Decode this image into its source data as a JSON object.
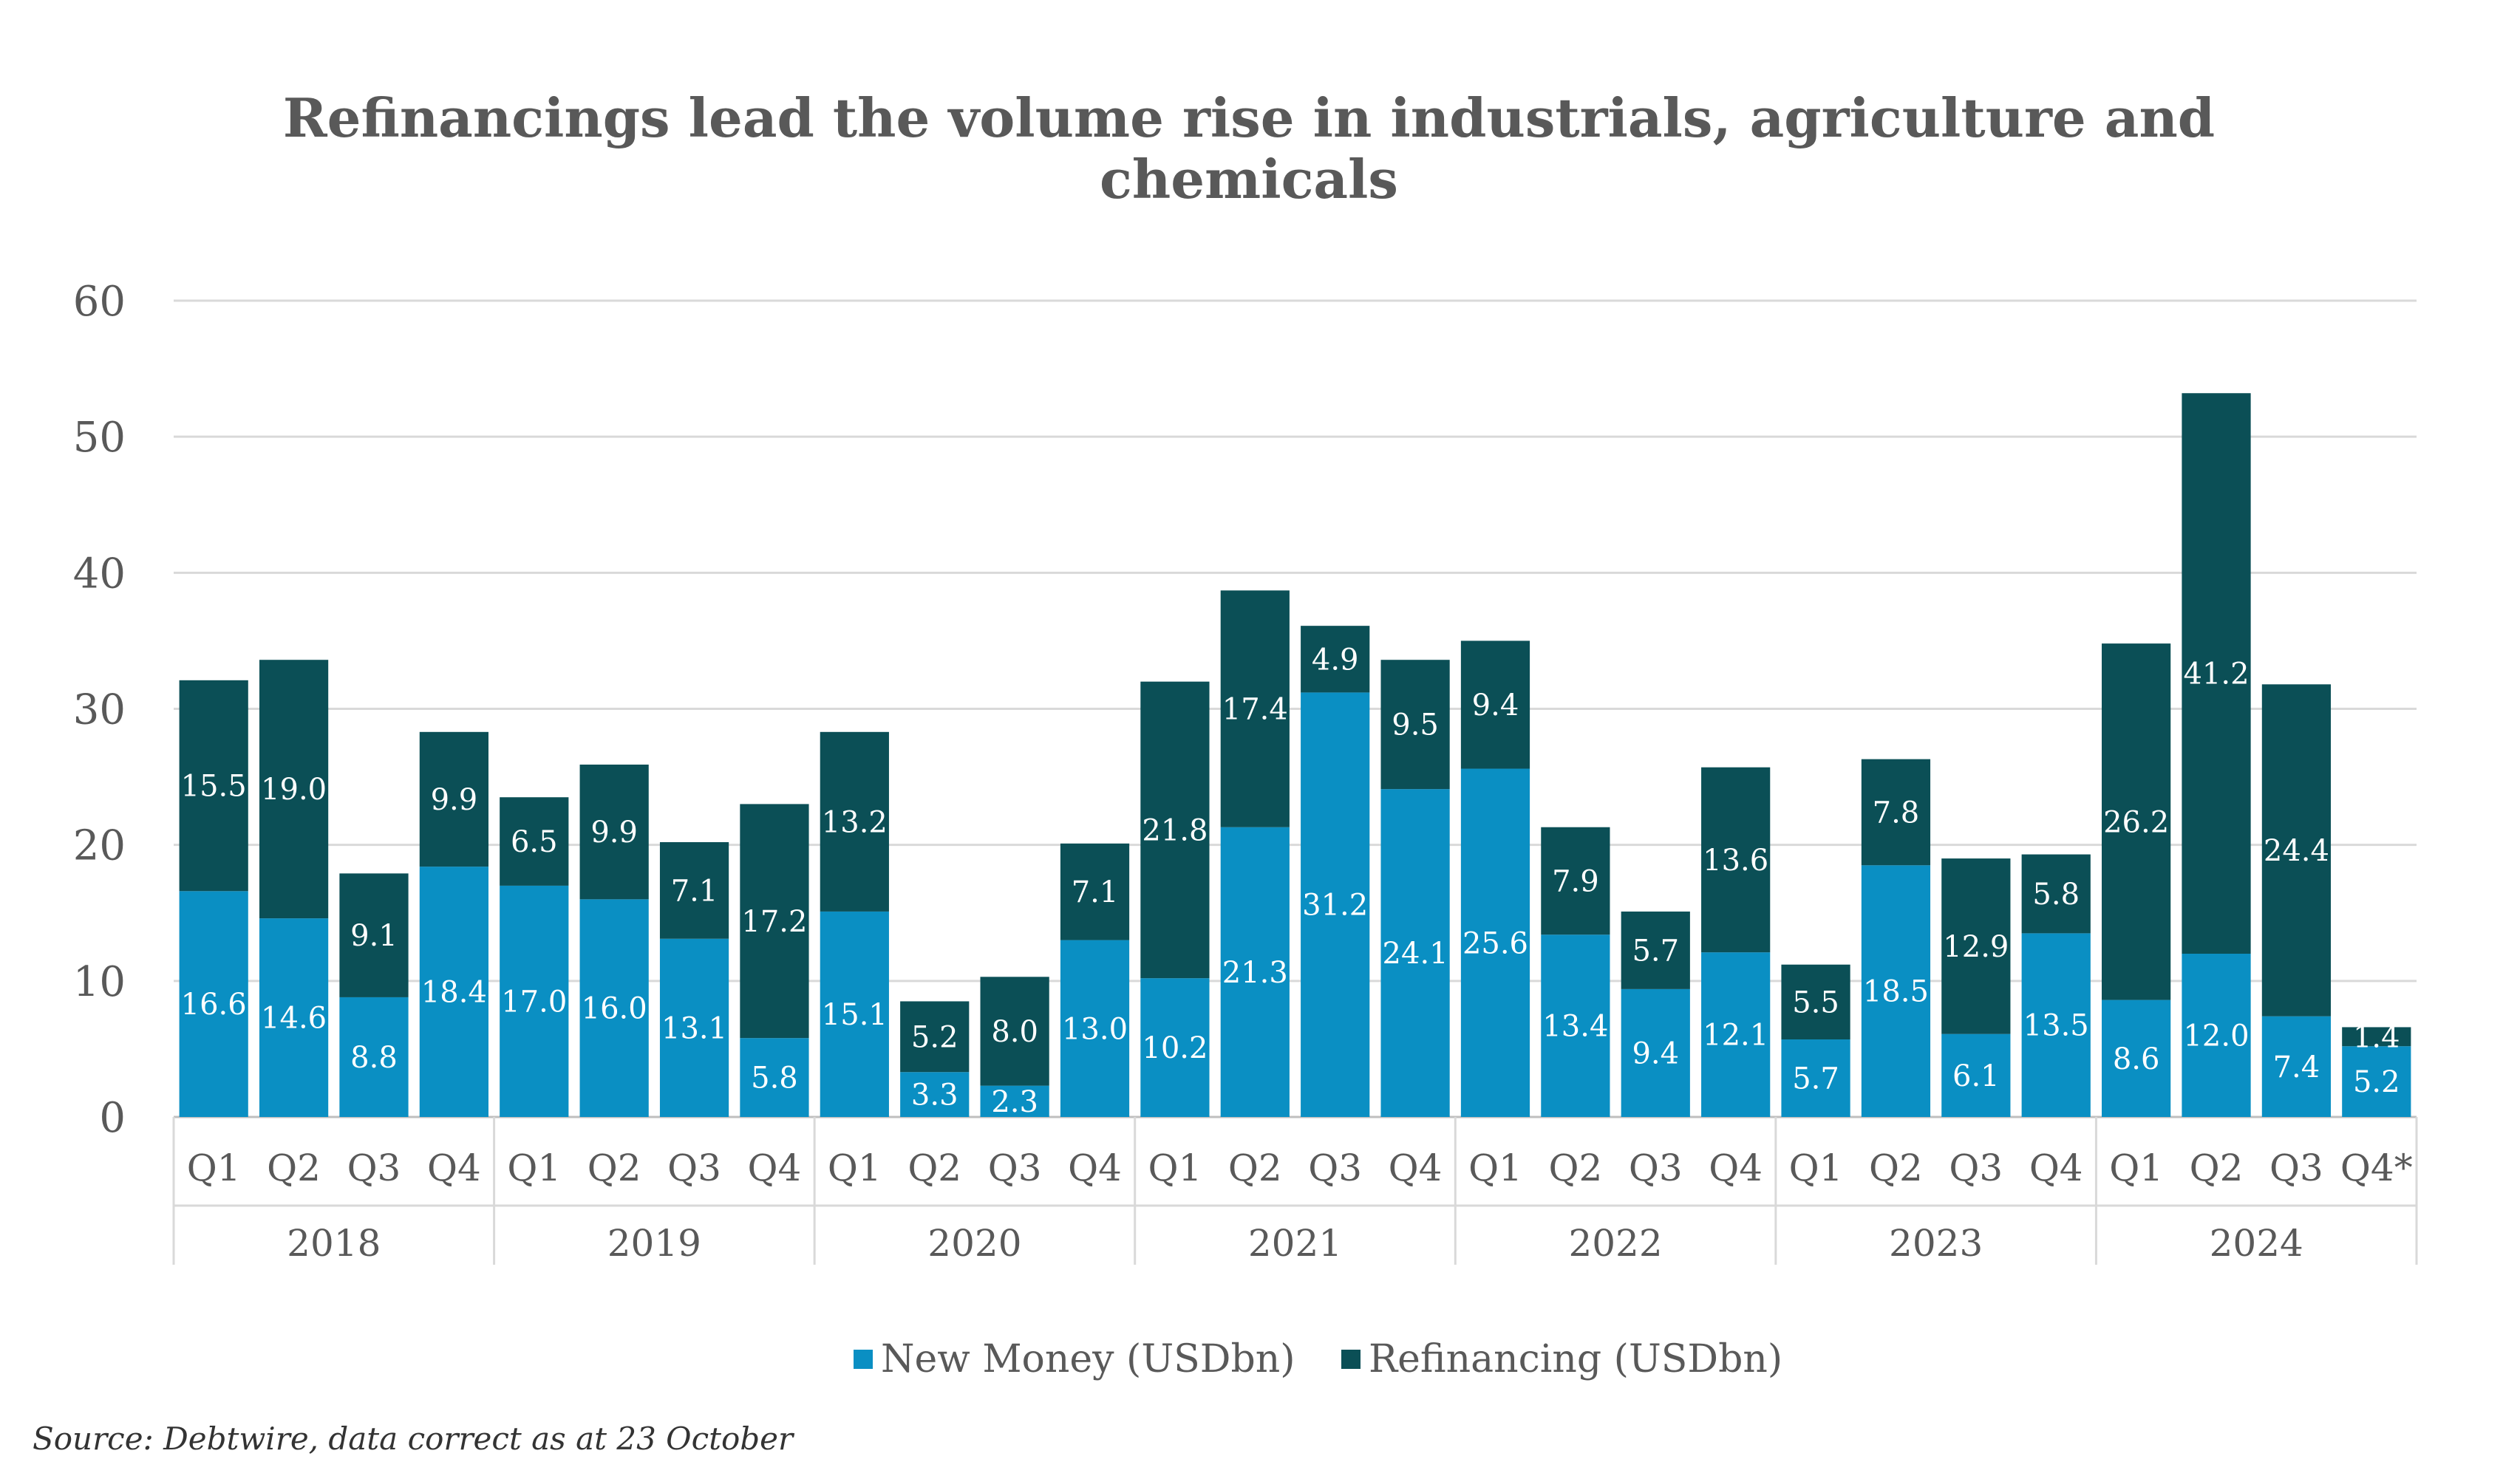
{
  "chart_data": {
    "type": "bar",
    "stacked": true,
    "title": "Refinancings lead the volume rise in industrials, agriculture and chemicals",
    "title_lines": [
      "Refinancings lead the volume rise in industrials, agriculture and",
      "chemicals"
    ],
    "xlabel": "",
    "ylabel": "",
    "ylim": [
      0,
      60
    ],
    "yticks": [
      0,
      10,
      20,
      30,
      40,
      50,
      60
    ],
    "grid": true,
    "legend_position": "bottom",
    "categories": [
      "Q1",
      "Q2",
      "Q3",
      "Q4",
      "Q1",
      "Q2",
      "Q3",
      "Q4",
      "Q1",
      "Q2",
      "Q3",
      "Q4",
      "Q1",
      "Q2",
      "Q3",
      "Q4",
      "Q1",
      "Q2",
      "Q3",
      "Q4",
      "Q1",
      "Q2",
      "Q3",
      "Q4",
      "Q1",
      "Q2",
      "Q3",
      "Q4*"
    ],
    "groups": [
      {
        "label": "2018",
        "count": 4
      },
      {
        "label": "2019",
        "count": 4
      },
      {
        "label": "2020",
        "count": 4
      },
      {
        "label": "2021",
        "count": 4
      },
      {
        "label": "2022",
        "count": 4
      },
      {
        "label": "2023",
        "count": 4
      },
      {
        "label": "2024",
        "count": 4
      }
    ],
    "series": [
      {
        "name": "New Money (USDbn)",
        "color": "#0A8FC3",
        "values": [
          16.6,
          14.6,
          8.8,
          18.4,
          17.0,
          16.0,
          13.1,
          5.8,
          15.1,
          3.3,
          2.3,
          13.0,
          10.2,
          21.3,
          31.2,
          24.1,
          25.6,
          13.4,
          9.4,
          12.1,
          5.7,
          18.5,
          6.1,
          13.5,
          8.6,
          12.0,
          7.4,
          5.2
        ],
        "labels": [
          "16.6",
          "14.6",
          "8.8",
          "18.4",
          "17.0",
          "16.0",
          "13.1",
          "5.8",
          "15.1",
          "3.3",
          "2.3",
          "13.0",
          "10.2",
          "21.3",
          "31.2",
          "24.1",
          "25.6",
          "13.4",
          "9.4",
          "12.1",
          "5.7",
          "18.5",
          "6.1",
          "13.5",
          "8.6",
          "12.0",
          "7.4",
          "5.2"
        ]
      },
      {
        "name": "Refinancing (USDbn)",
        "color": "#0B4F56",
        "values": [
          15.5,
          19.0,
          9.1,
          9.9,
          6.5,
          9.9,
          7.1,
          17.2,
          13.2,
          5.2,
          8.0,
          7.1,
          21.8,
          17.4,
          4.9,
          9.5,
          9.4,
          7.9,
          5.7,
          13.6,
          5.5,
          7.8,
          12.9,
          5.8,
          26.2,
          41.2,
          24.4,
          1.4
        ],
        "labels": [
          "15.5",
          "19.0",
          "9.1",
          "9.9",
          "6.5",
          "9.9",
          "7.1",
          "17.2",
          "13.2",
          "5.2",
          "8.0",
          "7.1",
          "21.8",
          "17.4",
          "4.9",
          "9.5",
          "9.4",
          "7.9",
          "5.7",
          "13.6",
          "5.5",
          "7.8",
          "12.9",
          "5.8",
          "26.2",
          "41.2",
          "24.4",
          "1.4"
        ]
      }
    ],
    "source": "Source: Debtwire, data correct as at 23  October"
  }
}
